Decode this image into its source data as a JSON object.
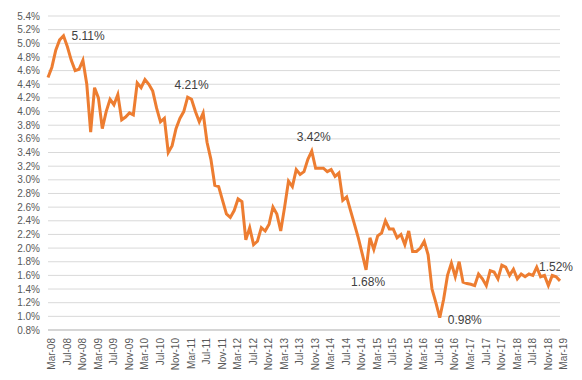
{
  "chart_data": {
    "type": "line",
    "categories": [
      "Mar-08",
      null,
      null,
      null,
      "Jul-08",
      null,
      null,
      null,
      "Nov-08",
      null,
      null,
      null,
      "Mar-09",
      null,
      null,
      null,
      "Jul-09",
      null,
      null,
      null,
      "Nov-09",
      null,
      null,
      null,
      "Mar-10",
      null,
      null,
      null,
      "Jul-10",
      null,
      null,
      null,
      "Nov-10",
      null,
      null,
      null,
      "Mar-11",
      null,
      null,
      null,
      "Jul-11",
      null,
      null,
      null,
      "Nov-11",
      null,
      null,
      null,
      "Mar-12",
      null,
      null,
      null,
      "Jul-12",
      null,
      null,
      null,
      "Nov-12",
      null,
      null,
      null,
      "Mar-13",
      null,
      null,
      null,
      "Jul-13",
      null,
      null,
      null,
      "Nov-13",
      null,
      null,
      null,
      "Mar-14",
      null,
      null,
      null,
      "Jul-14",
      null,
      null,
      null,
      "Nov-14",
      null,
      null,
      null,
      "Mar-15",
      null,
      null,
      null,
      "Jul-15",
      null,
      null,
      null,
      "Nov-15",
      null,
      null,
      null,
      "Mar-16",
      null,
      null,
      null,
      "Jul-16",
      null,
      null,
      null,
      "Nov-16",
      null,
      null,
      null,
      "Mar-17",
      null,
      null,
      null,
      "Jul-17",
      null,
      null,
      null,
      "Nov-17",
      null,
      null,
      null,
      "Mar-18",
      null,
      null,
      null,
      "Jul-18",
      null,
      null,
      null,
      "Nov-18",
      null,
      null,
      null,
      "Mar-19"
    ],
    "series": [
      {
        "color": "#ed7d31",
        "values": [
          4.5,
          4.65,
          4.9,
          5.05,
          5.11,
          4.95,
          4.75,
          4.6,
          4.62,
          4.75,
          4.4,
          3.7,
          4.35,
          4.2,
          3.75,
          4.0,
          4.18,
          4.1,
          4.25,
          3.88,
          3.92,
          3.98,
          3.95,
          4.42,
          4.35,
          4.47,
          4.4,
          4.3,
          4.05,
          3.85,
          3.9,
          3.4,
          3.5,
          3.75,
          3.9,
          4.0,
          4.21,
          4.18,
          4.0,
          3.85,
          3.98,
          3.55,
          3.3,
          2.92,
          2.9,
          2.7,
          2.5,
          2.45,
          2.55,
          2.72,
          2.68,
          2.12,
          2.3,
          2.05,
          2.1,
          2.3,
          2.25,
          2.35,
          2.6,
          2.5,
          2.25,
          2.6,
          2.98,
          2.9,
          3.15,
          3.08,
          3.12,
          3.3,
          3.42,
          3.17,
          3.17,
          3.17,
          3.12,
          3.15,
          3.05,
          3.1,
          2.7,
          2.75,
          2.55,
          2.35,
          2.15,
          1.92,
          1.68,
          2.15,
          1.98,
          2.18,
          2.22,
          2.4,
          2.28,
          2.28,
          2.15,
          2.2,
          2.05,
          2.25,
          1.95,
          1.95,
          2.0,
          2.1,
          1.9,
          1.4,
          1.2,
          0.98,
          1.25,
          1.6,
          1.78,
          1.58,
          1.8,
          1.5,
          1.48,
          1.47,
          1.45,
          1.62,
          1.55,
          1.45,
          1.67,
          1.65,
          1.55,
          1.75,
          1.72,
          1.6,
          1.69,
          1.55,
          1.62,
          1.58,
          1.62,
          1.6,
          1.72,
          1.58,
          1.6,
          1.45,
          1.6,
          1.58,
          1.52
        ]
      }
    ],
    "ylim": [
      0.8,
      5.4
    ],
    "yticks": [
      {
        "value": 0.8,
        "label": "0.8%"
      },
      {
        "value": 1.0,
        "label": "1.0%"
      },
      {
        "value": 1.2,
        "label": "1.2%"
      },
      {
        "value": 1.4,
        "label": "1.4%"
      },
      {
        "value": 1.6,
        "label": "1.6%"
      },
      {
        "value": 1.8,
        "label": "1.8%"
      },
      {
        "value": 2.0,
        "label": "2.0%"
      },
      {
        "value": 2.2,
        "label": "2.2%"
      },
      {
        "value": 2.4,
        "label": "2.4%"
      },
      {
        "value": 2.6,
        "label": "2.6%"
      },
      {
        "value": 2.8,
        "label": "2.8%"
      },
      {
        "value": 3.0,
        "label": "3.0%"
      },
      {
        "value": 3.2,
        "label": "3.2%"
      },
      {
        "value": 3.4,
        "label": "3.4%"
      },
      {
        "value": 3.6,
        "label": "3.6%"
      },
      {
        "value": 3.8,
        "label": "3.8%"
      },
      {
        "value": 4.0,
        "label": "4.0%"
      },
      {
        "value": 4.2,
        "label": "4.2%"
      },
      {
        "value": 4.4,
        "label": "4.4%"
      },
      {
        "value": 4.6,
        "label": "4.6%"
      },
      {
        "value": 4.8,
        "label": "4.8%"
      },
      {
        "value": 5.0,
        "label": "5.0%"
      },
      {
        "value": 5.2,
        "label": "5.2%"
      },
      {
        "value": 5.4,
        "label": "5.4%"
      }
    ],
    "grid": true,
    "annotations": [
      {
        "text": "5.11%",
        "value": 5.11
      },
      {
        "text": "4.21%",
        "value": 4.21
      },
      {
        "text": "3.42%",
        "value": 3.42
      },
      {
        "text": "1.68%",
        "value": 1.68
      },
      {
        "text": "0.98%",
        "value": 0.98
      },
      {
        "text": "1.52%",
        "value": 1.52
      }
    ]
  }
}
